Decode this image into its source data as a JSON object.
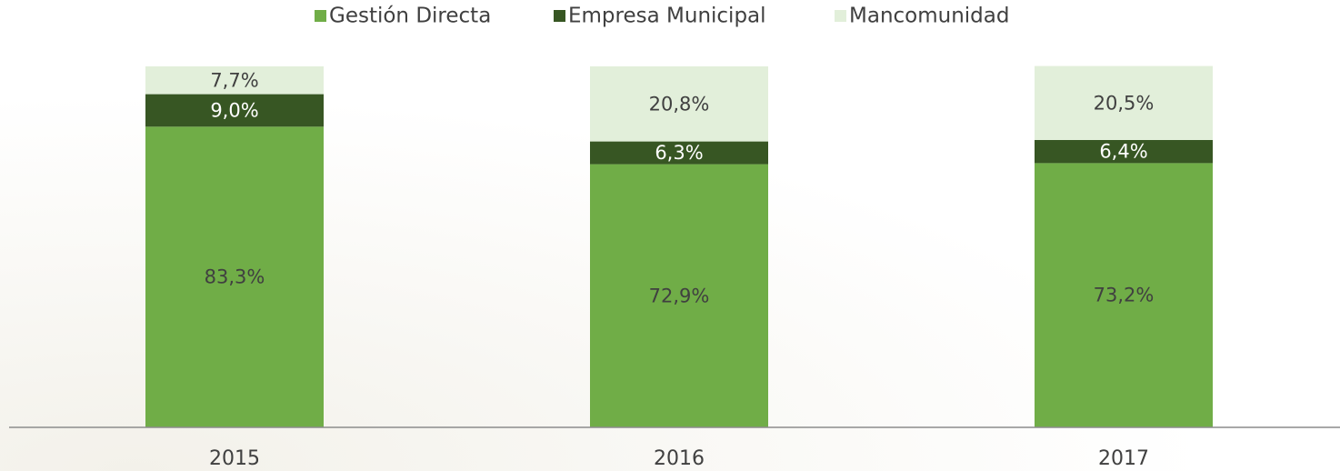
{
  "chart_data": {
    "type": "stacked-bar",
    "categories": [
      "2015",
      "2016",
      "2017"
    ],
    "series": [
      {
        "name": "Gestión Directa",
        "color": "#70ad47",
        "values": [
          83.3,
          72.9,
          73.2
        ],
        "value_labels": [
          "83,3%",
          "72,9%",
          "73,2%"
        ]
      },
      {
        "name": "Empresa Municipal",
        "color": "#375623",
        "values": [
          9.0,
          6.3,
          6.4
        ],
        "value_labels": [
          "9,0%",
          "6,3%",
          "6,4%"
        ]
      },
      {
        "name": "Mancomunidad",
        "color": "#e2efda",
        "values": [
          7.7,
          20.8,
          20.5
        ],
        "value_labels": [
          "7,7%",
          "20,8%",
          "20,5%"
        ]
      }
    ],
    "ylim": [
      0,
      100
    ],
    "legend": "top"
  }
}
